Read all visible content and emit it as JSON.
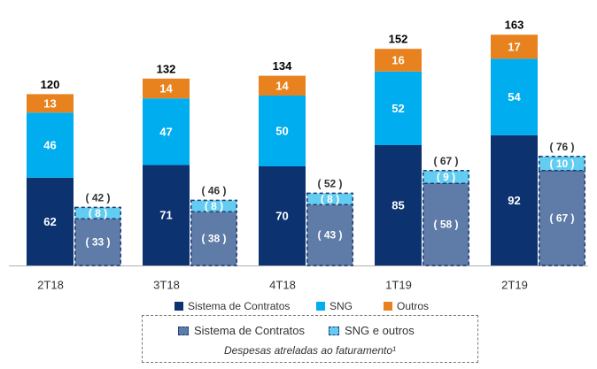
{
  "chart_data": {
    "type": "bar",
    "categories": [
      "2T18",
      "3T18",
      "4T18",
      "1T19",
      "2T19"
    ],
    "stack1": {
      "series": [
        {
          "name": "Sistema de Contratos",
          "values": [
            62,
            71,
            70,
            85,
            92
          ],
          "color": "#0d3270"
        },
        {
          "name": "SNG",
          "values": [
            46,
            47,
            50,
            52,
            54
          ],
          "color": "#00aeef"
        },
        {
          "name": "Outros",
          "values": [
            13,
            14,
            14,
            16,
            17
          ],
          "color": "#e7821e"
        }
      ],
      "totals": [
        120,
        132,
        134,
        152,
        163
      ]
    },
    "stack2": {
      "series": [
        {
          "name": "Sistema de Contratos",
          "values": [
            33,
            38,
            43,
            58,
            67
          ],
          "labels": [
            "( 33 )",
            "( 38 )",
            "( 43 )",
            "( 58 )",
            "( 67 )"
          ],
          "color": "#5f7ba7"
        },
        {
          "name": "SNG e outros",
          "values": [
            8,
            8,
            8,
            9,
            10
          ],
          "labels": [
            "( 8 )",
            "( 8 )",
            "( 8 )",
            "( 9 )",
            "( 10 )"
          ],
          "color": "#63cdf1"
        }
      ],
      "totals": [
        42,
        46,
        52,
        67,
        76
      ],
      "total_labels": [
        "( 42 )",
        "( 46 )",
        "( 52 )",
        "( 67 )",
        "( 76 )"
      ]
    },
    "ylim": [
      0,
      170
    ],
    "grid": false
  },
  "legend": {
    "items": [
      {
        "label": "Sistema de Contratos",
        "color": "#0d3270"
      },
      {
        "label": "SNG",
        "color": "#00aeef"
      },
      {
        "label": "Outros",
        "color": "#e7821e"
      }
    ],
    "dashed_items": [
      {
        "label": "Sistema de Contratos",
        "color": "#5f7ba7"
      },
      {
        "label": "SNG e outros",
        "color": "#63cdf1"
      }
    ],
    "note": "Despesas atreladas ao faturamento¹"
  }
}
